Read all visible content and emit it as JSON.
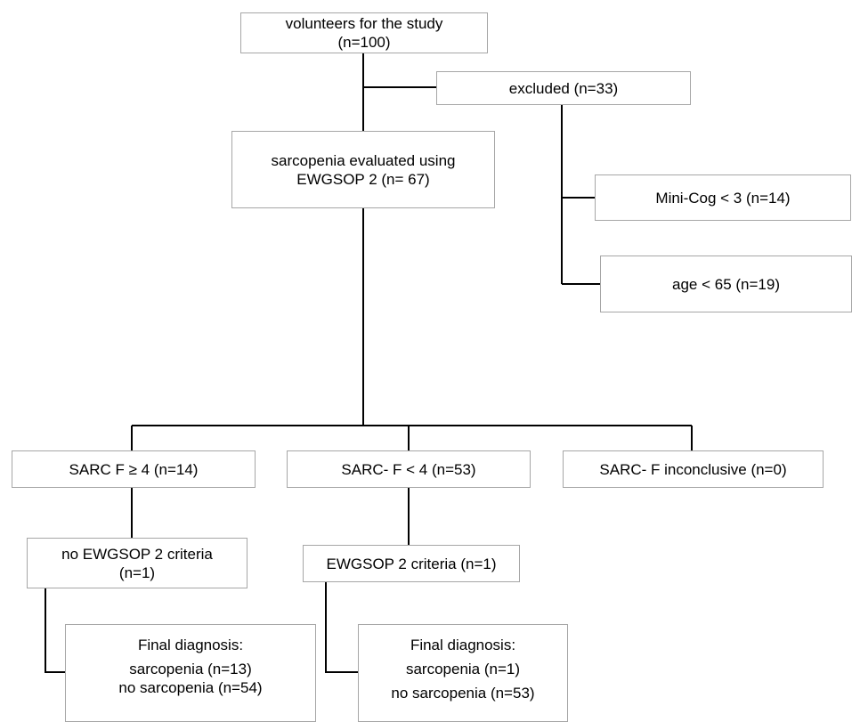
{
  "flowchart": {
    "volunteers": {
      "line1": "volunteers for the study",
      "line2": "(n=100)"
    },
    "excluded": {
      "label": "excluded (n=33)"
    },
    "evaluated": {
      "line1": "sarcopenia evaluated using",
      "line2": "EWGSOP 2 (n= 67)"
    },
    "mini_cog": {
      "label": "Mini-Cog < 3 (n=14)"
    },
    "age": {
      "label": "age < 65 (n=19)"
    },
    "sarc_f_ge4": {
      "label": "SARC F ≥ 4 (n=14)"
    },
    "sarc_f_lt4": {
      "label": "SARC- F < 4 (n=53)"
    },
    "sarc_f_inconclusive": {
      "label": "SARC- F inconclusive (n=0)"
    },
    "no_ewgsop": {
      "line1": "no EWGSOP 2 criteria",
      "line2": "(n=1)"
    },
    "ewgsop": {
      "label": "EWGSOP 2 criteria (n=1)"
    },
    "final_left": {
      "title": "Final diagnosis:",
      "line1": "sarcopenia (n=13)",
      "line2": "no sarcopenia (n=54)"
    },
    "final_right": {
      "title": "Final diagnosis:",
      "line1": "sarcopenia (n=1)",
      "line2": "no sarcopenia (n=53)"
    }
  }
}
